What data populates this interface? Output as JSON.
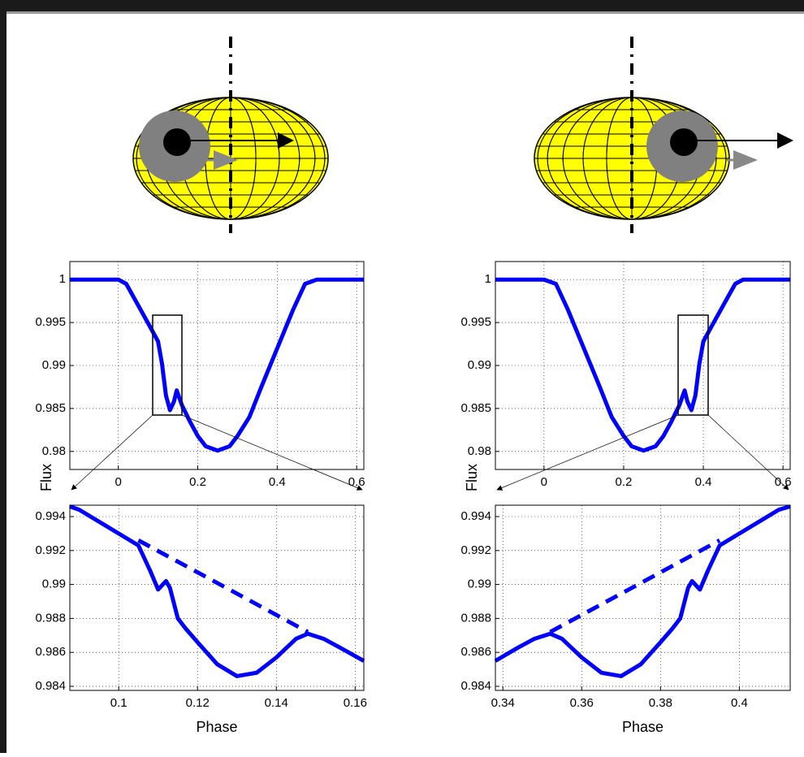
{
  "chart_data": [
    {
      "type": "line",
      "ylabel": "Flux",
      "xlim": [
        -0.122,
        0.618
      ],
      "ylim": [
        0.9779,
        1.0021
      ],
      "xticks": [
        0,
        0.2,
        0.4,
        0.6
      ],
      "yticks": [
        1,
        0.995,
        0.99,
        0.985,
        0.98
      ],
      "grid": true,
      "series": [
        {
          "color": "#0000ff",
          "x": [
            -0.122,
            0,
            0.02,
            0.05,
            0.08,
            0.1,
            0.11,
            0.12,
            0.13,
            0.14,
            0.147,
            0.16,
            0.18,
            0.2,
            0.22,
            0.25,
            0.28,
            0.3,
            0.33,
            0.36,
            0.4,
            0.44,
            0.47,
            0.5,
            0.618
          ],
          "values": [
            1,
            1,
            0.9995,
            0.997,
            0.9945,
            0.9928,
            0.9902,
            0.9865,
            0.9848,
            0.9858,
            0.9871,
            0.9854,
            0.9835,
            0.9818,
            0.9806,
            0.9801,
            0.9806,
            0.9818,
            0.984,
            0.9875,
            0.992,
            0.9965,
            0.9995,
            1,
            1
          ]
        }
      ]
    },
    {
      "type": "line",
      "ylabel": "Flux",
      "xlim": [
        -0.122,
        0.618
      ],
      "ylim": [
        0.9779,
        1.0021
      ],
      "xticks": [
        0,
        0.2,
        0.4,
        0.6
      ],
      "yticks": [
        1,
        0.995,
        0.99,
        0.985,
        0.98
      ],
      "grid": true,
      "series": [
        {
          "color": "#0000ff",
          "x": [
            -0.122,
            0,
            0.03,
            0.06,
            0.1,
            0.14,
            0.17,
            0.2,
            0.22,
            0.25,
            0.28,
            0.3,
            0.32,
            0.34,
            0.353,
            0.36,
            0.37,
            0.38,
            0.39,
            0.4,
            0.42,
            0.45,
            0.48,
            0.5,
            0.618
          ],
          "values": [
            1,
            1,
            0.9995,
            0.9965,
            0.992,
            0.9875,
            0.984,
            0.9818,
            0.9806,
            0.9801,
            0.9806,
            0.9818,
            0.9835,
            0.9854,
            0.9871,
            0.9858,
            0.9848,
            0.9865,
            0.9902,
            0.9928,
            0.9945,
            0.997,
            0.9995,
            1,
            1
          ]
        }
      ]
    },
    {
      "type": "line",
      "xlabel": "Phase",
      "xlim": [
        0.0876,
        0.1622
      ],
      "ylim": [
        0.98376,
        0.99467
      ],
      "xticks": [
        0.1,
        0.12,
        0.14,
        0.16
      ],
      "yticks": [
        0.994,
        0.992,
        0.99,
        0.988,
        0.986,
        0.984
      ],
      "grid": true,
      "series": [
        {
          "color": "#0000ff",
          "x": [
            0.0876,
            0.09,
            0.1,
            0.105,
            0.108,
            0.11,
            0.112,
            0.113,
            0.115,
            0.117,
            0.12,
            0.125,
            0.13,
            0.135,
            0.14,
            0.145,
            0.148,
            0.152,
            0.156,
            0.1622
          ],
          "values": [
            0.9946,
            0.9944,
            0.993,
            0.9923,
            0.9908,
            0.9897,
            0.9902,
            0.9898,
            0.988,
            0.9874,
            0.9866,
            0.9853,
            0.9846,
            0.9848,
            0.9857,
            0.9868,
            0.9871,
            0.9868,
            0.9863,
            0.9855
          ]
        },
        {
          "color": "#0000ff",
          "dashed": true,
          "x": [
            0.105,
            0.148
          ],
          "values": [
            0.9926,
            0.9872
          ]
        }
      ]
    },
    {
      "type": "line",
      "xlabel": "Phase",
      "xlim": [
        0.3381,
        0.4129
      ],
      "ylim": [
        0.98376,
        0.99467
      ],
      "xticks": [
        0.34,
        0.36,
        0.38,
        0.4
      ],
      "yticks": [
        0.994,
        0.992,
        0.99,
        0.988,
        0.986,
        0.984
      ],
      "grid": true,
      "series": [
        {
          "color": "#0000ff",
          "x": [
            0.3381,
            0.344,
            0.348,
            0.352,
            0.355,
            0.36,
            0.365,
            0.37,
            0.375,
            0.38,
            0.383,
            0.385,
            0.387,
            0.388,
            0.39,
            0.392,
            0.395,
            0.4,
            0.41,
            0.4129
          ],
          "values": [
            0.9855,
            0.9863,
            0.9868,
            0.9871,
            0.9868,
            0.9857,
            0.9848,
            0.9846,
            0.9853,
            0.9866,
            0.9874,
            0.988,
            0.9898,
            0.9902,
            0.9897,
            0.9908,
            0.9923,
            0.993,
            0.9944,
            0.9946
          ]
        },
        {
          "color": "#0000ff",
          "dashed": true,
          "x": [
            0.352,
            0.395
          ],
          "values": [
            0.9872,
            0.9926
          ]
        }
      ]
    }
  ]
}
